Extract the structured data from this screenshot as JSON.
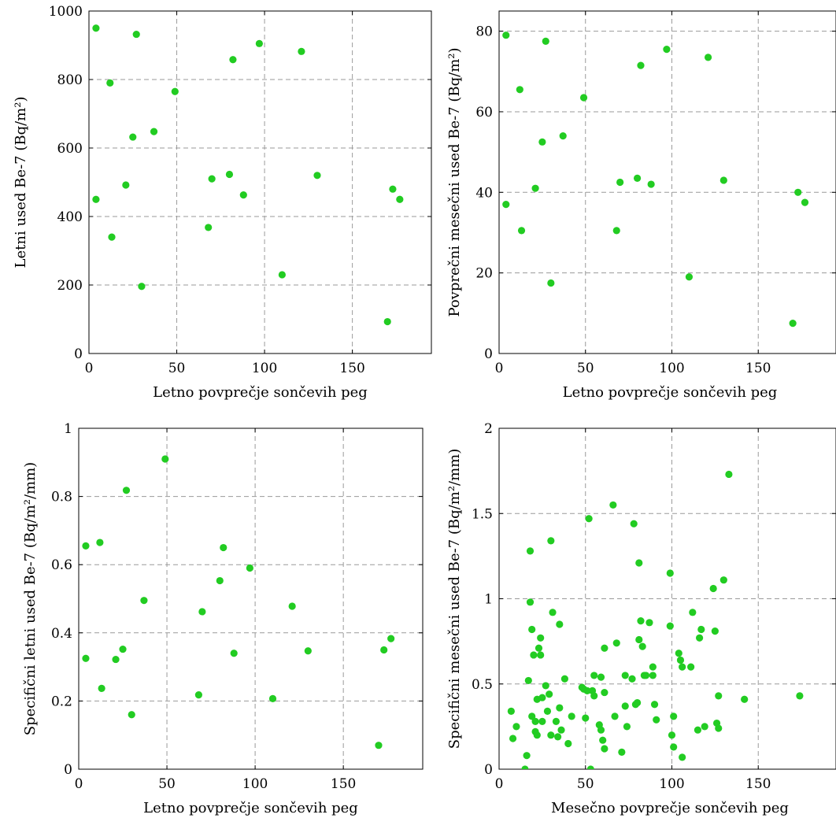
{
  "chart_data": [
    {
      "type": "scatter",
      "xlabel": "Letno povprečje sončevih peg",
      "ylabel": "Letni used Be-7 (Bq/m²)",
      "xlim": [
        0,
        195
      ],
      "ylim": [
        0,
        1000
      ],
      "xticks": [
        0,
        50,
        100,
        150
      ],
      "yticks": [
        0,
        200,
        400,
        600,
        800,
        1000
      ],
      "grid": true,
      "color": "#22cc22",
      "points": [
        [
          4,
          950
        ],
        [
          4,
          450
        ],
        [
          12,
          790
        ],
        [
          13,
          340
        ],
        [
          21,
          492
        ],
        [
          25,
          632
        ],
        [
          27,
          932
        ],
        [
          30,
          196
        ],
        [
          37,
          648
        ],
        [
          49,
          765
        ],
        [
          68,
          368
        ],
        [
          70,
          510
        ],
        [
          80,
          523
        ],
        [
          82,
          858
        ],
        [
          88,
          463
        ],
        [
          97,
          905
        ],
        [
          110,
          230
        ],
        [
          121,
          882
        ],
        [
          130,
          520
        ],
        [
          170,
          93
        ],
        [
          173,
          480
        ],
        [
          177,
          450
        ]
      ]
    },
    {
      "type": "scatter",
      "xlabel": "Letno povprečje sončevih peg",
      "ylabel": "Povprečni mesečni used Be-7 (Bq/m²)",
      "xlim": [
        0,
        195
      ],
      "ylim": [
        0,
        85
      ],
      "xticks": [
        0,
        50,
        100,
        150
      ],
      "yticks": [
        0,
        20,
        40,
        60,
        80
      ],
      "grid": true,
      "color": "#22cc22",
      "points": [
        [
          4,
          79
        ],
        [
          4,
          37
        ],
        [
          12,
          65.5
        ],
        [
          13,
          30.5
        ],
        [
          21,
          41
        ],
        [
          25,
          52.5
        ],
        [
          27,
          77.5
        ],
        [
          30,
          17.5
        ],
        [
          37,
          54
        ],
        [
          49,
          63.5
        ],
        [
          68,
          30.5
        ],
        [
          70,
          42.5
        ],
        [
          80,
          43.5
        ],
        [
          82,
          71.5
        ],
        [
          88,
          42
        ],
        [
          97,
          75.5
        ],
        [
          110,
          19
        ],
        [
          121,
          73.5
        ],
        [
          130,
          43
        ],
        [
          170,
          7.5
        ],
        [
          173,
          40
        ],
        [
          177,
          37.5
        ]
      ]
    },
    {
      "type": "scatter",
      "xlabel": "Letno povprečje sončevih peg",
      "ylabel": "Specifični letni used Be-7 (Bq/m²/mm)",
      "xlim": [
        0,
        195
      ],
      "ylim": [
        0,
        1
      ],
      "xticks": [
        0,
        50,
        100,
        150
      ],
      "yticks": [
        0,
        0.2,
        0.4,
        0.6,
        0.8,
        1
      ],
      "grid": true,
      "color": "#22cc22",
      "points": [
        [
          4,
          0.655
        ],
        [
          4,
          0.325
        ],
        [
          12,
          0.665
        ],
        [
          13,
          0.237
        ],
        [
          21,
          0.322
        ],
        [
          25,
          0.352
        ],
        [
          27,
          0.818
        ],
        [
          30,
          0.16
        ],
        [
          37,
          0.495
        ],
        [
          49,
          0.91
        ],
        [
          68,
          0.218
        ],
        [
          70,
          0.462
        ],
        [
          80,
          0.553
        ],
        [
          82,
          0.65
        ],
        [
          88,
          0.34
        ],
        [
          97,
          0.59
        ],
        [
          110,
          0.207
        ],
        [
          121,
          0.478
        ],
        [
          130,
          0.347
        ],
        [
          170,
          0.07
        ],
        [
          173,
          0.35
        ],
        [
          177,
          0.383
        ]
      ]
    },
    {
      "type": "scatter",
      "xlabel": "Mesečno povprečje sončevih peg",
      "ylabel": "Specifični mesečni used Be-7 (Bq/m²/mm)",
      "xlim": [
        0,
        195
      ],
      "ylim": [
        0,
        2
      ],
      "xticks": [
        0,
        50,
        100,
        150
      ],
      "yticks": [
        0,
        0.5,
        1,
        1.5,
        2
      ],
      "grid": true,
      "color": "#22cc22",
      "points": [
        [
          7,
          0.34
        ],
        [
          8,
          0.18
        ],
        [
          10,
          0.25
        ],
        [
          15,
          0.0
        ],
        [
          16,
          0.08
        ],
        [
          17,
          0.52
        ],
        [
          18,
          0.98
        ],
        [
          18,
          1.28
        ],
        [
          19,
          0.82
        ],
        [
          19,
          0.31
        ],
        [
          20,
          0.67
        ],
        [
          21,
          0.28
        ],
        [
          21,
          0.22
        ],
        [
          22,
          0.41
        ],
        [
          22,
          0.2
        ],
        [
          23,
          0.71
        ],
        [
          24,
          0.67
        ],
        [
          24,
          0.77
        ],
        [
          25,
          0.42
        ],
        [
          25,
          0.28
        ],
        [
          27,
          0.49
        ],
        [
          28,
          0.34
        ],
        [
          29,
          0.44
        ],
        [
          30,
          1.34
        ],
        [
          30,
          0.2
        ],
        [
          31,
          0.92
        ],
        [
          33,
          0.28
        ],
        [
          34,
          0.19
        ],
        [
          35,
          0.85
        ],
        [
          35,
          0.36
        ],
        [
          36,
          0.23
        ],
        [
          38,
          0.53
        ],
        [
          40,
          0.15
        ],
        [
          42,
          0.31
        ],
        [
          48,
          0.48
        ],
        [
          49,
          0.47
        ],
        [
          50,
          0.3
        ],
        [
          51,
          0.46
        ],
        [
          52,
          1.47
        ],
        [
          53,
          0.0
        ],
        [
          54,
          0.46
        ],
        [
          55,
          0.43
        ],
        [
          55,
          0.55
        ],
        [
          58,
          0.26
        ],
        [
          59,
          0.23
        ],
        [
          59,
          0.54
        ],
        [
          60,
          0.17
        ],
        [
          61,
          0.12
        ],
        [
          61,
          0.71
        ],
        [
          61,
          0.45
        ],
        [
          66,
          1.55
        ],
        [
          67,
          0.31
        ],
        [
          68,
          0.74
        ],
        [
          71,
          0.1
        ],
        [
          73,
          0.37
        ],
        [
          73,
          0.55
        ],
        [
          74,
          0.25
        ],
        [
          77,
          0.53
        ],
        [
          78,
          1.44
        ],
        [
          79,
          0.38
        ],
        [
          80,
          0.39
        ],
        [
          81,
          1.21
        ],
        [
          81,
          0.76
        ],
        [
          82,
          0.87
        ],
        [
          83,
          0.72
        ],
        [
          84,
          0.55
        ],
        [
          85,
          0.55
        ],
        [
          87,
          0.86
        ],
        [
          89,
          0.6
        ],
        [
          89,
          0.55
        ],
        [
          90,
          0.38
        ],
        [
          91,
          0.29
        ],
        [
          99,
          1.15
        ],
        [
          99,
          0.84
        ],
        [
          100,
          0.2
        ],
        [
          101,
          0.13
        ],
        [
          101,
          0.31
        ],
        [
          104,
          0.68
        ],
        [
          105,
          0.64
        ],
        [
          106,
          0.6
        ],
        [
          106,
          0.07
        ],
        [
          111,
          0.6
        ],
        [
          112,
          0.92
        ],
        [
          115,
          0.23
        ],
        [
          116,
          0.77
        ],
        [
          117,
          0.82
        ],
        [
          119,
          0.25
        ],
        [
          124,
          1.06
        ],
        [
          125,
          0.81
        ],
        [
          126,
          0.27
        ],
        [
          127,
          0.43
        ],
        [
          127,
          0.24
        ],
        [
          130,
          1.11
        ],
        [
          133,
          1.73
        ],
        [
          142,
          0.41
        ],
        [
          174,
          0.43
        ]
      ]
    }
  ]
}
